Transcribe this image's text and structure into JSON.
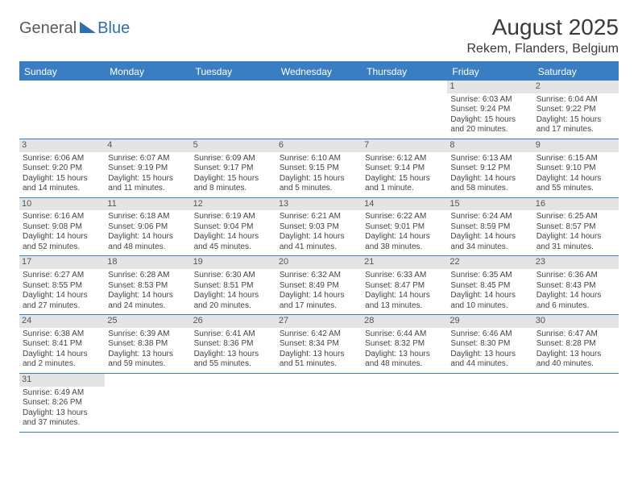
{
  "logo": {
    "general": "General",
    "blue": "Blue"
  },
  "title": "August 2025",
  "location": "Rekem, Flanders, Belgium",
  "colors": {
    "brand": "#3a7ec1",
    "headerbg": "#3a7ec1",
    "daynum_bg": "#e4e4e4"
  },
  "day_headers": [
    "Sunday",
    "Monday",
    "Tuesday",
    "Wednesday",
    "Thursday",
    "Friday",
    "Saturday"
  ],
  "weeks": [
    [
      {
        "n": "",
        "sr": "",
        "ss": "",
        "dl": ""
      },
      {
        "n": "",
        "sr": "",
        "ss": "",
        "dl": ""
      },
      {
        "n": "",
        "sr": "",
        "ss": "",
        "dl": ""
      },
      {
        "n": "",
        "sr": "",
        "ss": "",
        "dl": ""
      },
      {
        "n": "",
        "sr": "",
        "ss": "",
        "dl": ""
      },
      {
        "n": "1",
        "sr": "Sunrise: 6:03 AM",
        "ss": "Sunset: 9:24 PM",
        "dl": "Daylight: 15 hours and 20 minutes."
      },
      {
        "n": "2",
        "sr": "Sunrise: 6:04 AM",
        "ss": "Sunset: 9:22 PM",
        "dl": "Daylight: 15 hours and 17 minutes."
      }
    ],
    [
      {
        "n": "3",
        "sr": "Sunrise: 6:06 AM",
        "ss": "Sunset: 9:20 PM",
        "dl": "Daylight: 15 hours and 14 minutes."
      },
      {
        "n": "4",
        "sr": "Sunrise: 6:07 AM",
        "ss": "Sunset: 9:19 PM",
        "dl": "Daylight: 15 hours and 11 minutes."
      },
      {
        "n": "5",
        "sr": "Sunrise: 6:09 AM",
        "ss": "Sunset: 9:17 PM",
        "dl": "Daylight: 15 hours and 8 minutes."
      },
      {
        "n": "6",
        "sr": "Sunrise: 6:10 AM",
        "ss": "Sunset: 9:15 PM",
        "dl": "Daylight: 15 hours and 5 minutes."
      },
      {
        "n": "7",
        "sr": "Sunrise: 6:12 AM",
        "ss": "Sunset: 9:14 PM",
        "dl": "Daylight: 15 hours and 1 minute."
      },
      {
        "n": "8",
        "sr": "Sunrise: 6:13 AM",
        "ss": "Sunset: 9:12 PM",
        "dl": "Daylight: 14 hours and 58 minutes."
      },
      {
        "n": "9",
        "sr": "Sunrise: 6:15 AM",
        "ss": "Sunset: 9:10 PM",
        "dl": "Daylight: 14 hours and 55 minutes."
      }
    ],
    [
      {
        "n": "10",
        "sr": "Sunrise: 6:16 AM",
        "ss": "Sunset: 9:08 PM",
        "dl": "Daylight: 14 hours and 52 minutes."
      },
      {
        "n": "11",
        "sr": "Sunrise: 6:18 AM",
        "ss": "Sunset: 9:06 PM",
        "dl": "Daylight: 14 hours and 48 minutes."
      },
      {
        "n": "12",
        "sr": "Sunrise: 6:19 AM",
        "ss": "Sunset: 9:04 PM",
        "dl": "Daylight: 14 hours and 45 minutes."
      },
      {
        "n": "13",
        "sr": "Sunrise: 6:21 AM",
        "ss": "Sunset: 9:03 PM",
        "dl": "Daylight: 14 hours and 41 minutes."
      },
      {
        "n": "14",
        "sr": "Sunrise: 6:22 AM",
        "ss": "Sunset: 9:01 PM",
        "dl": "Daylight: 14 hours and 38 minutes."
      },
      {
        "n": "15",
        "sr": "Sunrise: 6:24 AM",
        "ss": "Sunset: 8:59 PM",
        "dl": "Daylight: 14 hours and 34 minutes."
      },
      {
        "n": "16",
        "sr": "Sunrise: 6:25 AM",
        "ss": "Sunset: 8:57 PM",
        "dl": "Daylight: 14 hours and 31 minutes."
      }
    ],
    [
      {
        "n": "17",
        "sr": "Sunrise: 6:27 AM",
        "ss": "Sunset: 8:55 PM",
        "dl": "Daylight: 14 hours and 27 minutes."
      },
      {
        "n": "18",
        "sr": "Sunrise: 6:28 AM",
        "ss": "Sunset: 8:53 PM",
        "dl": "Daylight: 14 hours and 24 minutes."
      },
      {
        "n": "19",
        "sr": "Sunrise: 6:30 AM",
        "ss": "Sunset: 8:51 PM",
        "dl": "Daylight: 14 hours and 20 minutes."
      },
      {
        "n": "20",
        "sr": "Sunrise: 6:32 AM",
        "ss": "Sunset: 8:49 PM",
        "dl": "Daylight: 14 hours and 17 minutes."
      },
      {
        "n": "21",
        "sr": "Sunrise: 6:33 AM",
        "ss": "Sunset: 8:47 PM",
        "dl": "Daylight: 14 hours and 13 minutes."
      },
      {
        "n": "22",
        "sr": "Sunrise: 6:35 AM",
        "ss": "Sunset: 8:45 PM",
        "dl": "Daylight: 14 hours and 10 minutes."
      },
      {
        "n": "23",
        "sr": "Sunrise: 6:36 AM",
        "ss": "Sunset: 8:43 PM",
        "dl": "Daylight: 14 hours and 6 minutes."
      }
    ],
    [
      {
        "n": "24",
        "sr": "Sunrise: 6:38 AM",
        "ss": "Sunset: 8:41 PM",
        "dl": "Daylight: 14 hours and 2 minutes."
      },
      {
        "n": "25",
        "sr": "Sunrise: 6:39 AM",
        "ss": "Sunset: 8:38 PM",
        "dl": "Daylight: 13 hours and 59 minutes."
      },
      {
        "n": "26",
        "sr": "Sunrise: 6:41 AM",
        "ss": "Sunset: 8:36 PM",
        "dl": "Daylight: 13 hours and 55 minutes."
      },
      {
        "n": "27",
        "sr": "Sunrise: 6:42 AM",
        "ss": "Sunset: 8:34 PM",
        "dl": "Daylight: 13 hours and 51 minutes."
      },
      {
        "n": "28",
        "sr": "Sunrise: 6:44 AM",
        "ss": "Sunset: 8:32 PM",
        "dl": "Daylight: 13 hours and 48 minutes."
      },
      {
        "n": "29",
        "sr": "Sunrise: 6:46 AM",
        "ss": "Sunset: 8:30 PM",
        "dl": "Daylight: 13 hours and 44 minutes."
      },
      {
        "n": "30",
        "sr": "Sunrise: 6:47 AM",
        "ss": "Sunset: 8:28 PM",
        "dl": "Daylight: 13 hours and 40 minutes."
      }
    ],
    [
      {
        "n": "31",
        "sr": "Sunrise: 6:49 AM",
        "ss": "Sunset: 8:26 PM",
        "dl": "Daylight: 13 hours and 37 minutes."
      },
      {
        "n": "",
        "sr": "",
        "ss": "",
        "dl": ""
      },
      {
        "n": "",
        "sr": "",
        "ss": "",
        "dl": ""
      },
      {
        "n": "",
        "sr": "",
        "ss": "",
        "dl": ""
      },
      {
        "n": "",
        "sr": "",
        "ss": "",
        "dl": ""
      },
      {
        "n": "",
        "sr": "",
        "ss": "",
        "dl": ""
      },
      {
        "n": "",
        "sr": "",
        "ss": "",
        "dl": ""
      }
    ]
  ]
}
